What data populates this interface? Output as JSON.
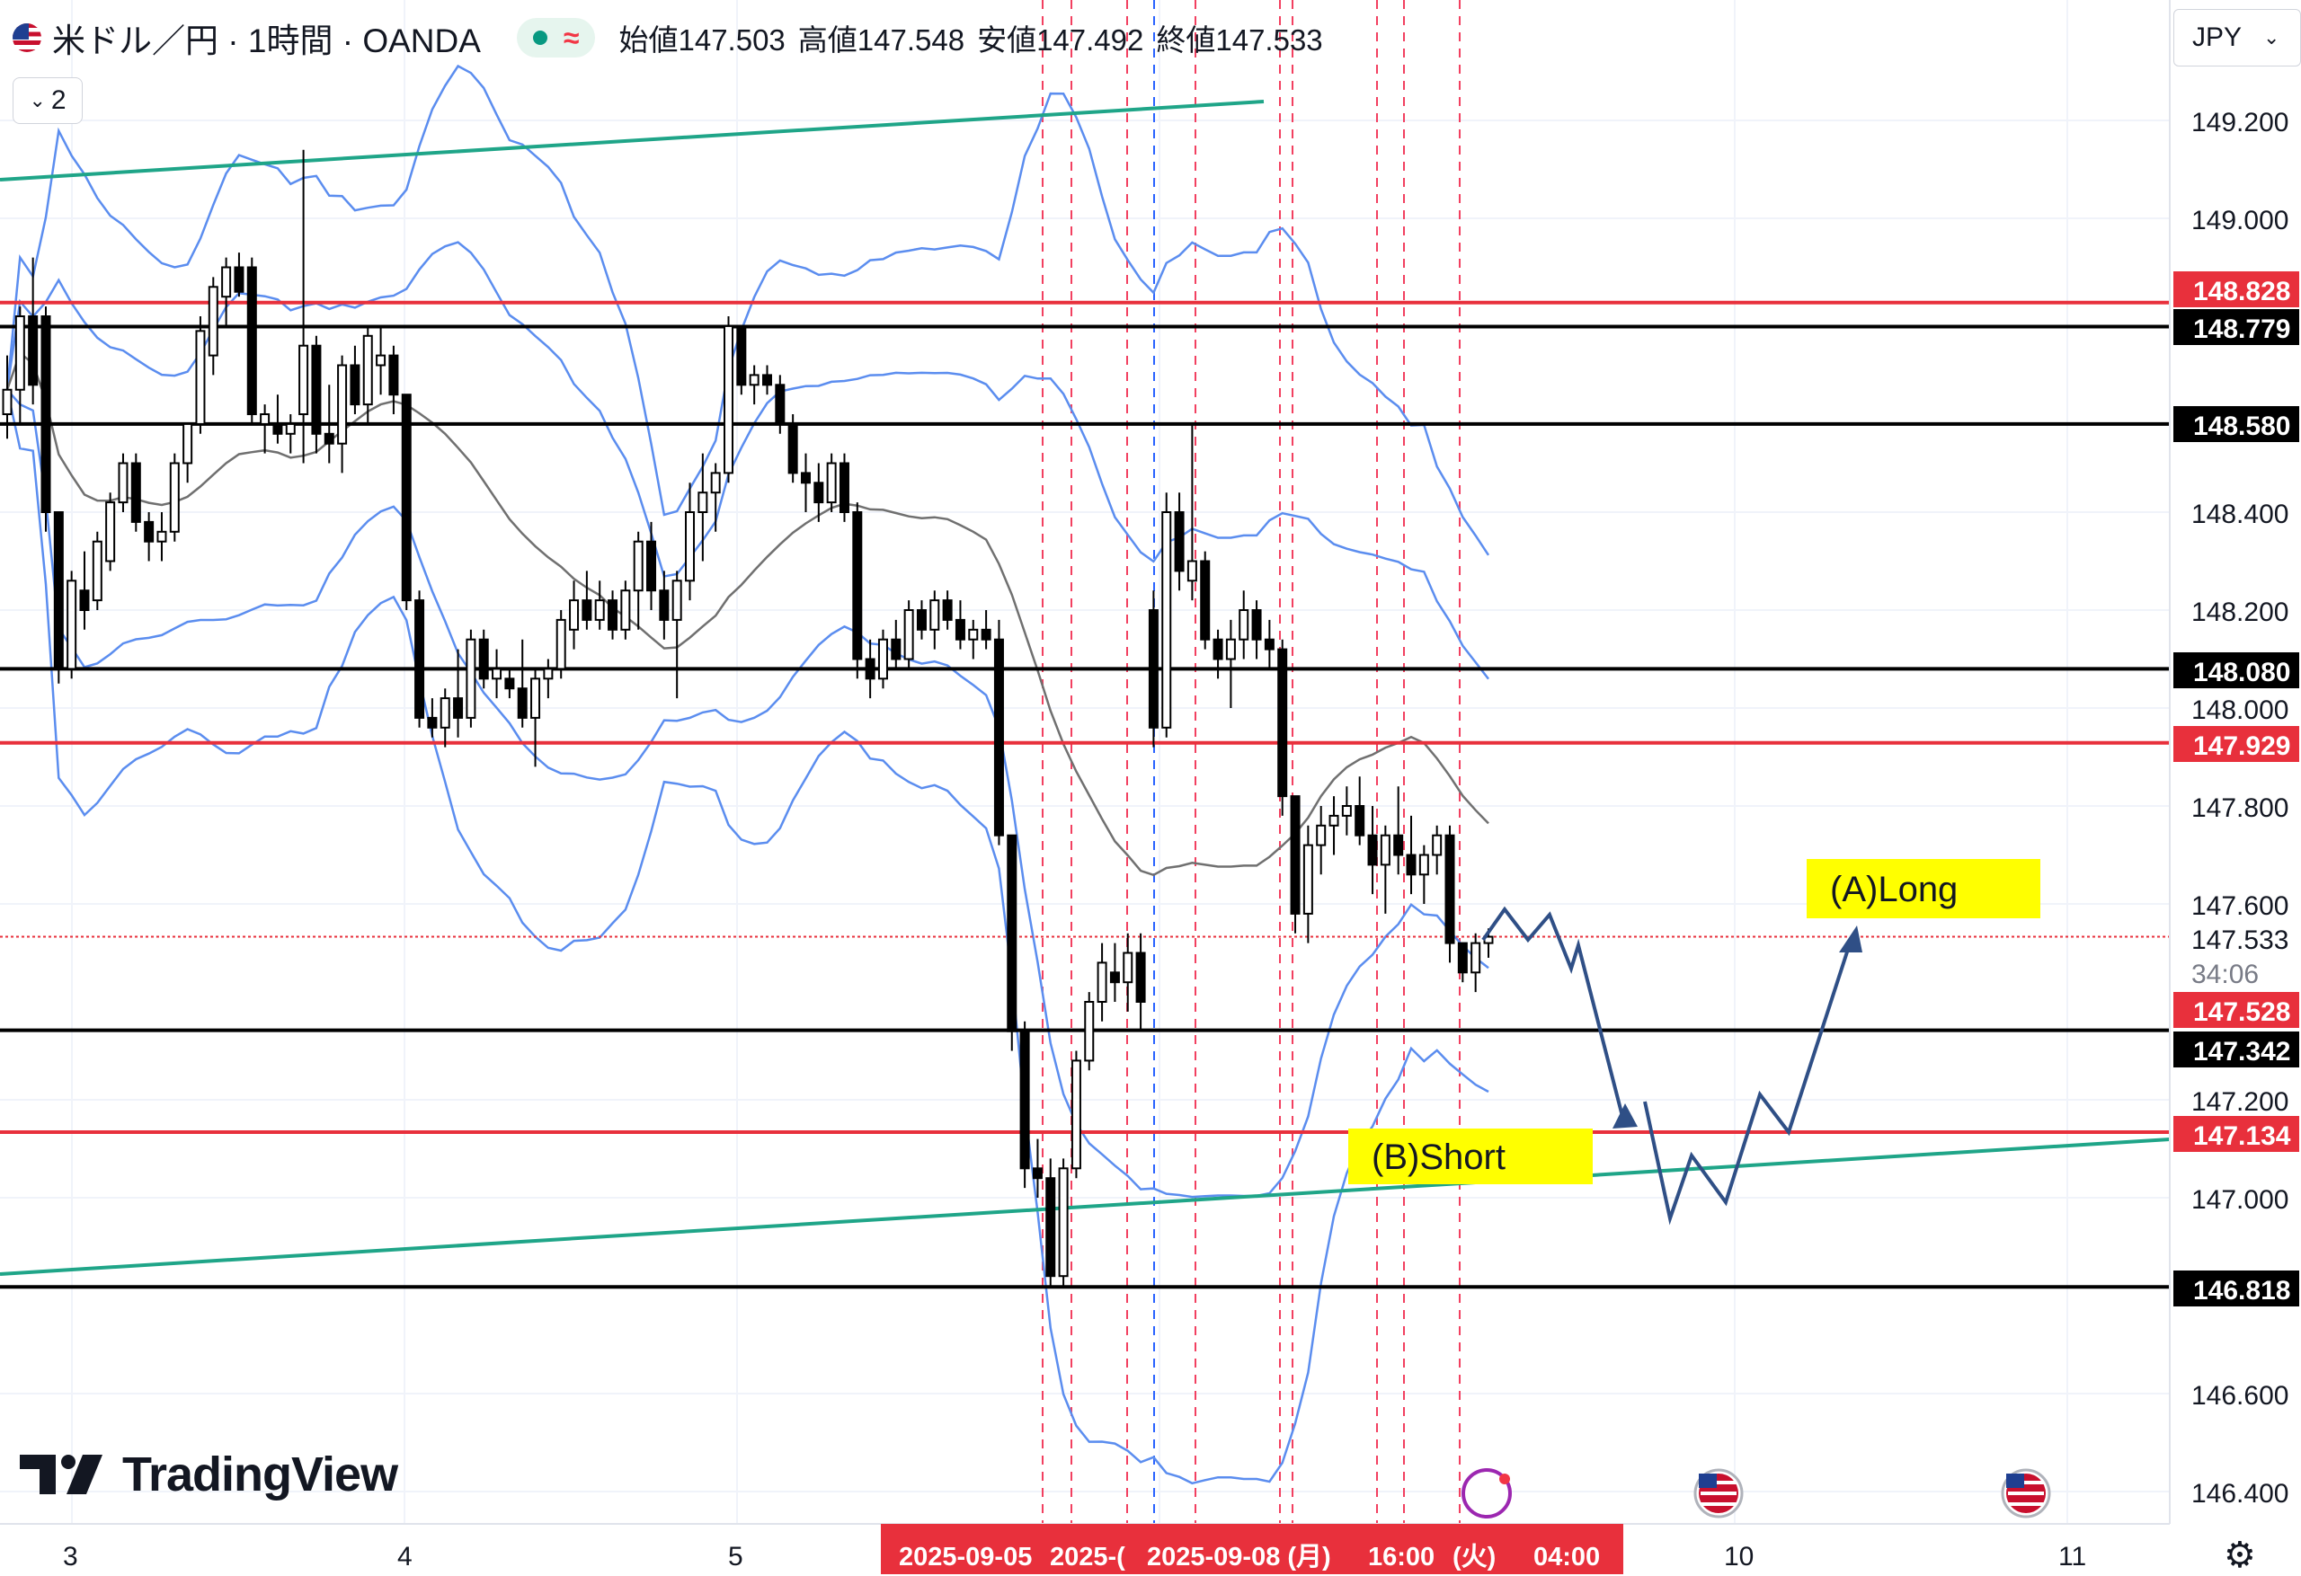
{
  "header": {
    "symbol_title": "米ドル／円 · 1時間 · OANDA",
    "open_label": "始値",
    "open_value": "147.503",
    "high_label": "高値",
    "high_value": "147.548",
    "low_label": "安値",
    "low_value": "147.492",
    "close_label": "終値",
    "close_value": "147.533",
    "indicator_count": "2"
  },
  "currency_selector": "JPY",
  "logo_text": "TradingView",
  "colors": {
    "up": "#ffffff",
    "down": "#000000",
    "bollinger": "#5b8def",
    "sma": "#707070",
    "red_line": "#e8303c",
    "black_line": "#000000",
    "channel": "#1fa588",
    "arrow": "#2f4f86",
    "label_yellow": "#ffff00",
    "pink_dash": "#f24060",
    "blue_dash": "#2962ff"
  },
  "chart_data": {
    "type": "candlestick",
    "instrument": "米ドル／円",
    "timeframe": "1時間",
    "y_axis": {
      "ticks": [
        "149.200",
        "149.000",
        "148.400",
        "148.200",
        "148.000",
        "147.800",
        "147.600",
        "147.200",
        "147.000",
        "146.600",
        "146.400"
      ],
      "range": [
        146.37,
        149.44
      ]
    },
    "x_axis": {
      "ticks": [
        "3",
        "4",
        "5",
        "10",
        "11"
      ]
    },
    "time_labels": [
      "2025-09-05",
      "2025-(",
      "2025-09-08 (月)",
      "16:00",
      "(火)",
      "04:00"
    ],
    "price_labels": [
      {
        "value": "148.828",
        "kind": "red"
      },
      {
        "value": "148.779",
        "kind": "black"
      },
      {
        "value": "148.580",
        "kind": "black"
      },
      {
        "value": "148.080",
        "kind": "black"
      },
      {
        "value": "147.929",
        "kind": "red"
      },
      {
        "value": "147.533",
        "kind": "current"
      },
      {
        "value": "34:06",
        "kind": "countdown"
      },
      {
        "value": "147.528",
        "kind": "red"
      },
      {
        "value": "147.342",
        "kind": "black"
      },
      {
        "value": "147.134",
        "kind": "red"
      },
      {
        "value": "146.818",
        "kind": "black"
      }
    ],
    "horizontal_lines": [
      {
        "price": 148.828,
        "color": "red"
      },
      {
        "price": 148.779,
        "color": "black"
      },
      {
        "price": 148.58,
        "color": "black"
      },
      {
        "price": 148.08,
        "color": "black"
      },
      {
        "price": 147.929,
        "color": "red"
      },
      {
        "price": 147.342,
        "color": "black"
      },
      {
        "price": 147.134,
        "color": "red"
      },
      {
        "price": 146.818,
        "color": "black"
      }
    ],
    "current_price": 147.533,
    "annotations": [
      {
        "text": "(A)Long"
      },
      {
        "text": "(B)Short"
      }
    ],
    "candles": [
      [
        148.6,
        148.72,
        148.55,
        148.65
      ],
      [
        148.65,
        148.82,
        148.58,
        148.8
      ],
      [
        148.8,
        148.92,
        148.62,
        148.66
      ],
      [
        148.8,
        148.82,
        148.36,
        148.4
      ],
      [
        148.4,
        148.4,
        148.05,
        148.08
      ],
      [
        148.08,
        148.28,
        148.06,
        148.26
      ],
      [
        148.24,
        148.32,
        148.16,
        148.2
      ],
      [
        148.22,
        148.36,
        148.2,
        148.34
      ],
      [
        148.3,
        148.44,
        148.28,
        148.42
      ],
      [
        148.42,
        148.52,
        148.4,
        148.5
      ],
      [
        148.5,
        148.52,
        148.36,
        148.38
      ],
      [
        148.38,
        148.4,
        148.3,
        148.34
      ],
      [
        148.34,
        148.4,
        148.3,
        148.36
      ],
      [
        148.36,
        148.52,
        148.34,
        148.5
      ],
      [
        148.5,
        148.58,
        148.46,
        148.58
      ],
      [
        148.58,
        148.8,
        148.56,
        148.77
      ],
      [
        148.72,
        148.88,
        148.68,
        148.86
      ],
      [
        148.84,
        148.92,
        148.78,
        148.9
      ],
      [
        148.9,
        148.93,
        148.84,
        148.85
      ],
      [
        148.9,
        148.92,
        148.58,
        148.6
      ],
      [
        148.58,
        148.62,
        148.52,
        148.6
      ],
      [
        148.58,
        148.64,
        148.54,
        148.56
      ],
      [
        148.56,
        148.6,
        148.52,
        148.58
      ],
      [
        148.6,
        149.14,
        148.5,
        148.74
      ],
      [
        148.74,
        148.76,
        148.52,
        148.56
      ],
      [
        148.56,
        148.66,
        148.5,
        148.54
      ],
      [
        148.54,
        148.72,
        148.48,
        148.7
      ],
      [
        148.7,
        148.74,
        148.6,
        148.62
      ],
      [
        148.62,
        148.78,
        148.58,
        148.76
      ],
      [
        148.7,
        148.78,
        148.64,
        148.72
      ],
      [
        148.72,
        148.74,
        148.6,
        148.64
      ],
      [
        148.64,
        148.64,
        148.2,
        148.22
      ],
      [
        148.22,
        148.24,
        147.96,
        147.98
      ],
      [
        147.98,
        148.02,
        147.94,
        147.96
      ],
      [
        147.96,
        148.04,
        147.92,
        148.02
      ],
      [
        148.02,
        148.12,
        147.94,
        147.98
      ],
      [
        147.98,
        148.16,
        147.96,
        148.14
      ],
      [
        148.14,
        148.16,
        148.04,
        148.06
      ],
      [
        148.06,
        148.12,
        148.02,
        148.08
      ],
      [
        148.06,
        148.08,
        148.02,
        148.04
      ],
      [
        148.04,
        148.14,
        147.96,
        147.98
      ],
      [
        147.98,
        148.08,
        147.88,
        148.06
      ],
      [
        148.06,
        148.1,
        148.02,
        148.08
      ],
      [
        148.08,
        148.2,
        148.06,
        148.18
      ],
      [
        148.16,
        148.26,
        148.12,
        148.22
      ],
      [
        148.22,
        148.28,
        148.16,
        148.18
      ],
      [
        148.18,
        148.26,
        148.16,
        148.22
      ],
      [
        148.22,
        148.24,
        148.14,
        148.16
      ],
      [
        148.16,
        148.26,
        148.14,
        148.24
      ],
      [
        148.24,
        148.36,
        148.16,
        148.34
      ],
      [
        148.34,
        148.38,
        148.2,
        148.24
      ],
      [
        148.24,
        148.28,
        148.14,
        148.18
      ],
      [
        148.18,
        148.28,
        148.02,
        148.26
      ],
      [
        148.26,
        148.46,
        148.22,
        148.4
      ],
      [
        148.4,
        148.52,
        148.3,
        148.44
      ],
      [
        148.44,
        148.5,
        148.36,
        148.48
      ],
      [
        148.48,
        148.8,
        148.46,
        148.78
      ],
      [
        148.78,
        148.78,
        148.64,
        148.66
      ],
      [
        148.66,
        148.7,
        148.62,
        148.68
      ],
      [
        148.68,
        148.7,
        148.64,
        148.66
      ],
      [
        148.66,
        148.68,
        148.56,
        148.58
      ],
      [
        148.58,
        148.6,
        148.46,
        148.48
      ],
      [
        148.48,
        148.52,
        148.4,
        148.46
      ],
      [
        148.46,
        148.5,
        148.38,
        148.42
      ],
      [
        148.42,
        148.52,
        148.4,
        148.5
      ],
      [
        148.5,
        148.52,
        148.38,
        148.4
      ],
      [
        148.4,
        148.42,
        148.06,
        148.1
      ],
      [
        148.1,
        148.14,
        148.02,
        148.06
      ],
      [
        148.06,
        148.16,
        148.04,
        148.14
      ],
      [
        148.14,
        148.18,
        148.08,
        148.1
      ],
      [
        148.1,
        148.22,
        148.08,
        148.2
      ],
      [
        148.2,
        148.22,
        148.14,
        148.16
      ],
      [
        148.16,
        148.24,
        148.12,
        148.22
      ],
      [
        148.22,
        148.24,
        148.16,
        148.18
      ],
      [
        148.18,
        148.22,
        148.12,
        148.14
      ],
      [
        148.14,
        148.18,
        148.1,
        148.16
      ],
      [
        148.16,
        148.2,
        148.12,
        148.14
      ],
      [
        148.14,
        148.18,
        147.72,
        147.74
      ],
      [
        147.74,
        147.74,
        147.3,
        147.34
      ],
      [
        147.34,
        147.36,
        147.02,
        147.06
      ],
      [
        147.06,
        147.12,
        147.0,
        147.04
      ],
      [
        147.04,
        147.08,
        146.82,
        146.84
      ],
      [
        146.84,
        147.08,
        146.82,
        147.06
      ],
      [
        147.06,
        147.3,
        147.04,
        147.28
      ],
      [
        147.28,
        147.42,
        147.26,
        147.4
      ],
      [
        147.4,
        147.52,
        147.36,
        147.48
      ],
      [
        147.46,
        147.52,
        147.4,
        147.44
      ],
      [
        147.44,
        147.54,
        147.38,
        147.5
      ],
      [
        147.5,
        147.54,
        147.34,
        147.4
      ],
      [
        148.2,
        148.24,
        147.92,
        147.96
      ],
      [
        147.96,
        148.44,
        147.94,
        148.4
      ],
      [
        148.4,
        148.44,
        148.24,
        148.28
      ],
      [
        148.26,
        148.58,
        148.22,
        148.3
      ],
      [
        148.3,
        148.32,
        148.12,
        148.14
      ],
      [
        148.14,
        148.16,
        148.06,
        148.1
      ],
      [
        148.1,
        148.18,
        148.0,
        148.14
      ],
      [
        148.14,
        148.24,
        148.1,
        148.2
      ],
      [
        148.2,
        148.22,
        148.1,
        148.14
      ],
      [
        148.14,
        148.18,
        148.08,
        148.12
      ],
      [
        148.12,
        148.14,
        147.78,
        147.82
      ],
      [
        147.82,
        147.82,
        147.54,
        147.58
      ],
      [
        147.58,
        147.76,
        147.52,
        147.72
      ],
      [
        147.72,
        147.8,
        147.66,
        147.76
      ],
      [
        147.76,
        147.82,
        147.7,
        147.78
      ],
      [
        147.78,
        147.84,
        147.74,
        147.8
      ],
      [
        147.8,
        147.86,
        147.72,
        147.74
      ],
      [
        147.74,
        147.8,
        147.62,
        147.68
      ],
      [
        147.68,
        147.76,
        147.58,
        147.74
      ],
      [
        147.74,
        147.84,
        147.66,
        147.7
      ],
      [
        147.7,
        147.78,
        147.62,
        147.66
      ],
      [
        147.66,
        147.72,
        147.6,
        147.7
      ],
      [
        147.7,
        147.76,
        147.66,
        147.74
      ],
      [
        147.74,
        147.76,
        147.48,
        147.52
      ],
      [
        147.52,
        147.52,
        147.44,
        147.46
      ],
      [
        147.46,
        147.54,
        147.42,
        147.52
      ],
      [
        147.52,
        147.55,
        147.49,
        147.533
      ]
    ]
  }
}
